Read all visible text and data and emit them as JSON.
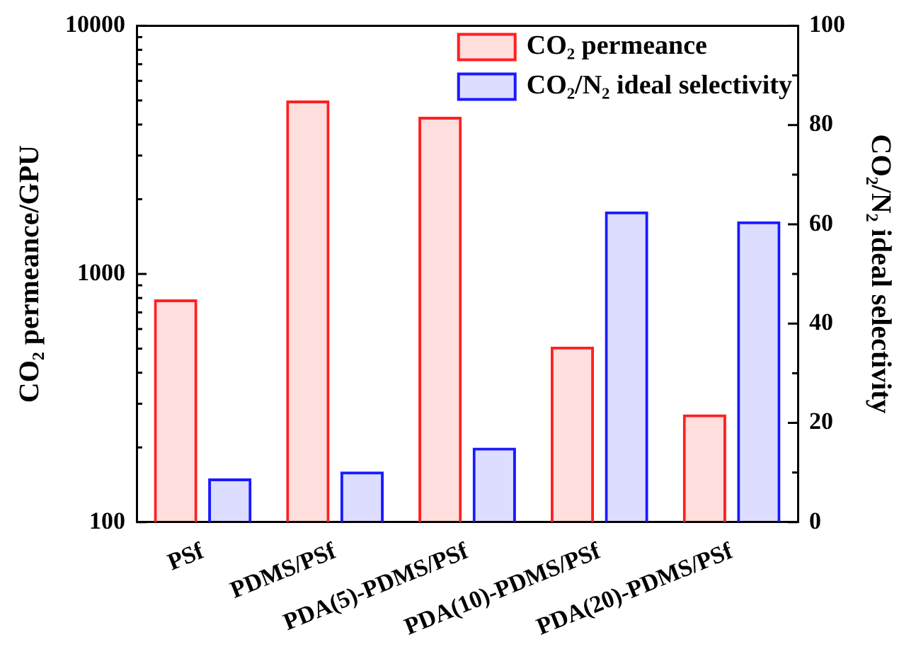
{
  "chart_data": {
    "type": "bar",
    "categories": [
      "PSf",
      "PDMS/PSf",
      "PDA(5)-PDMS/PSf",
      "PDA(10)-PDMS/PSf",
      "PDA(20)-PDMS/PSf"
    ],
    "series": [
      {
        "name": "CO₂ permeance",
        "color": "#ff2020",
        "values": [
          790,
          5000,
          4300,
          510,
          272
        ]
      },
      {
        "name": "CO₂/N₂ ideal selectivity",
        "color": "#1a1aff",
        "values": [
          8.8,
          10.2,
          15.0,
          62.6,
          60.6
        ],
        "axis": "y2"
      }
    ],
    "ylabel": "CO₂ permeance/GPU",
    "y2label": "CO₂/N₂ ideal selectivity",
    "log": "y",
    "ylim": [
      100,
      10000
    ],
    "yticks": [
      100,
      {
        "value": 200,
        "label": null
      },
      {
        "value": 300,
        "label": null
      },
      {
        "value": 400,
        "label": null
      },
      {
        "value": 500,
        "label": null
      },
      {
        "value": 600,
        "label": null
      },
      {
        "value": 700,
        "label": null
      },
      {
        "value": 800,
        "label": null
      },
      {
        "value": 900,
        "label": null
      },
      1000,
      {
        "value": 2000,
        "label": null
      },
      {
        "value": 3000,
        "label": null
      },
      {
        "value": 4000,
        "label": null
      },
      {
        "value": 5000,
        "label": null
      },
      {
        "value": 6000,
        "label": null
      },
      {
        "value": 7000,
        "label": null
      },
      {
        "value": 8000,
        "label": null
      },
      {
        "value": 9000,
        "label": null
      },
      10000
    ],
    "y2lim": [
      0,
      100
    ],
    "y2ticks": [
      0,
      {
        "value": 10,
        "label": null
      },
      20,
      {
        "value": 30,
        "label": null
      },
      40,
      {
        "value": 50,
        "label": null
      },
      60,
      {
        "value": 70,
        "label": null
      },
      80,
      {
        "value": 90,
        "label": null
      },
      100
    ],
    "grid": false,
    "legend": "top right"
  }
}
